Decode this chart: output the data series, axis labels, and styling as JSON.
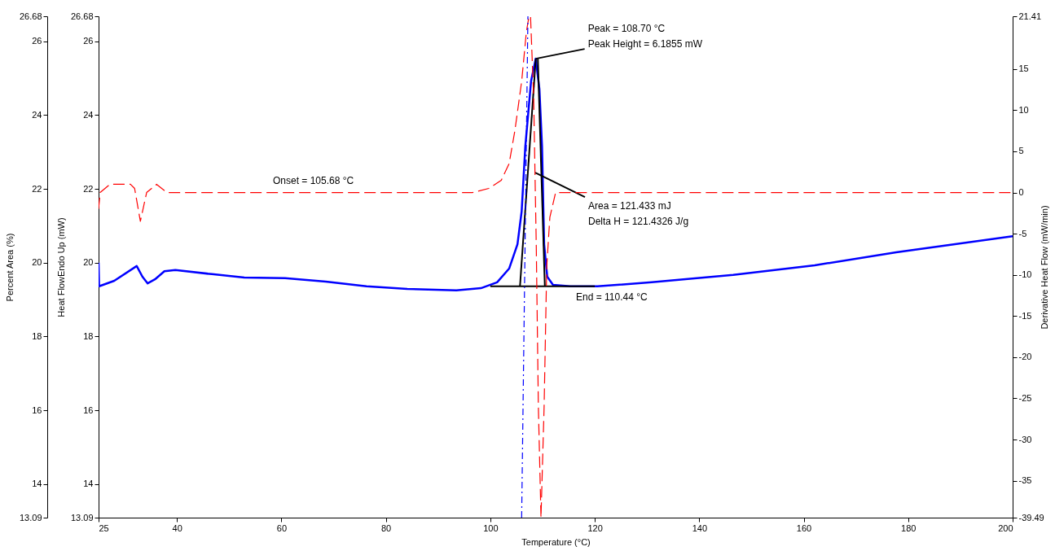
{
  "chart_data": {
    "type": "line",
    "xlabel": "Temperature (°C)",
    "ylabel": "Heat FlowEndo Up (mW)",
    "y2label": "Derivative Heat Flow (mW/min)",
    "y3label": "Percent Area (%)",
    "xlim": [
      25,
      200
    ],
    "xticks": [
      25,
      40,
      60,
      80,
      100,
      120,
      140,
      160,
      180,
      200
    ],
    "ylim": [
      13.09,
      26.68
    ],
    "yticks": [
      13.09,
      14,
      16,
      18,
      20,
      22,
      24,
      26,
      26.68
    ],
    "y2lim": [
      -39.49,
      21.41
    ],
    "y2ticks": [
      -39.49,
      -35,
      -30,
      -25,
      -20,
      -15,
      -10,
      -5,
      0,
      5,
      10,
      15,
      21.41
    ],
    "y3lim": [
      13.09,
      26.68
    ],
    "y3ticks": [
      13.09,
      14,
      16,
      18,
      20,
      22,
      24,
      26,
      26.68
    ],
    "grid": false,
    "series": [
      {
        "color": "#0000ff",
        "axis": "y",
        "line_style": "solid",
        "x": [
          25,
          25.1,
          28.0,
          32.3,
          33.4,
          34.4,
          35.8,
          37.6,
          39.7,
          46.7,
          52.9,
          60.7,
          68.5,
          76.3,
          84.1,
          93.5,
          98.2,
          101.3,
          103.6,
          105.2,
          106.0,
          106.7,
          107.8,
          108.7,
          109.4,
          109.9,
          110.3,
          110.9,
          112.0,
          115.3,
          120.5,
          130.9,
          146.5,
          162.1,
          177.7,
          200
        ],
        "values": [
          20.0,
          19.36,
          19.51,
          19.91,
          19.62,
          19.44,
          19.55,
          19.77,
          19.8,
          19.69,
          19.6,
          19.58,
          19.49,
          19.36,
          19.29,
          19.25,
          19.31,
          19.47,
          19.84,
          20.5,
          21.39,
          23.15,
          24.92,
          25.53,
          24.7,
          23.15,
          20.5,
          19.62,
          19.4,
          19.36,
          19.36,
          19.47,
          19.67,
          19.93,
          20.28,
          20.72
        ]
      },
      {
        "color": "#ff0000",
        "axis": "y2",
        "line_style": "dashed",
        "x": [
          25,
          25.3,
          27.2,
          31.1,
          31.9,
          33.0,
          34.2,
          36.1,
          38.1,
          39.7,
          52.9,
          68.5,
          84.1,
          96.6,
          99.7,
          102.1,
          103.6,
          104.7,
          106.0,
          106.9,
          107.4,
          107.7,
          108.3,
          108.8,
          109.2,
          109.7,
          110.3,
          110.8,
          111.4,
          112.5,
          115.3,
          130.9,
          162.1,
          200
        ],
        "values": [
          -2,
          0,
          1,
          1,
          0.5,
          -3.5,
          0,
          1,
          0,
          0,
          0,
          0,
          0,
          0,
          0.5,
          1.5,
          3.5,
          7.5,
          13.5,
          19.5,
          21.41,
          21.41,
          11.5,
          -6.5,
          -26,
          -39.49,
          -26,
          -9,
          -3,
          0,
          0,
          0,
          0,
          0
        ]
      },
      {
        "color": "#0000ff",
        "axis": "y3",
        "line_style": "dashdot",
        "x": [
          106.0,
          107.2
        ],
        "values": [
          13.09,
          26.68
        ]
      },
      {
        "color": "#000000",
        "axis": "y",
        "line_style": "solid",
        "x": [
          100,
          120
        ],
        "values": [
          19.36,
          19.36
        ]
      },
      {
        "color": "#000000",
        "axis": "y",
        "line_style": "solid",
        "x": [
          105.68,
          108.7
        ],
        "values": [
          19.36,
          25.53
        ]
      },
      {
        "color": "#000000",
        "axis": "y",
        "line_style": "solid",
        "x": [
          109.1,
          110.44
        ],
        "values": [
          25.53,
          19.36
        ]
      }
    ],
    "annotations": [
      "Onset = 105.68 °C",
      {
        "text": "Peak = 108.70 °C\nPeak Height = 6.1855 mW",
        "x": 108.7,
        "y": 25.53
      },
      {
        "text": "Area = 121.433 mJ\nDelta H = 121.4326 J/g",
        "x": 108.6,
        "y": 22.44
      },
      "End = 110.44 °C"
    ]
  }
}
